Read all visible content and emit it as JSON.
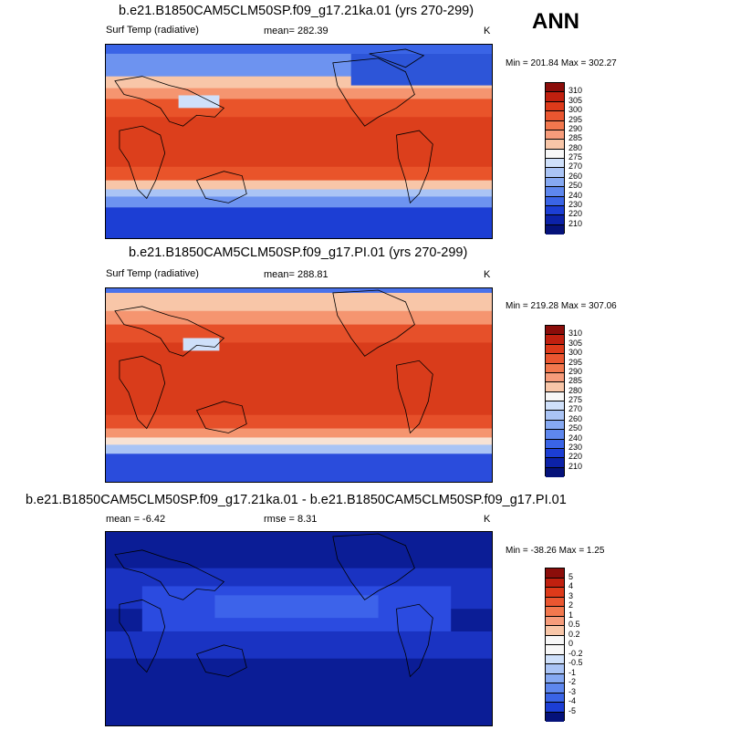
{
  "season": "ANN",
  "colors": {
    "temp_scale": [
      "#f7f7f7"
    ],
    "diff_scale": [
      "#f7f7f7"
    ]
  },
  "panels": [
    {
      "title": "b.e21.B1850CAM5CLM50SP.f09_g17.21ka.01 (yrs 270-299)",
      "left_label": "Surf Temp (radiative)",
      "center_label": "mean= 282.39",
      "unit": "K",
      "minmax": "Min = 201.84 Max = 302.27",
      "colorbar_labels": [
        "310",
        "305",
        "300",
        "295",
        "290",
        "285",
        "280",
        "275",
        "270",
        "260",
        "250",
        "240",
        "230",
        "220",
        "210"
      ]
    },
    {
      "title": "b.e21.B1850CAM5CLM50SP.f09_g17.PI.01 (yrs 270-299)",
      "left_label": "Surf Temp (radiative)",
      "center_label": "mean= 288.81",
      "unit": "K",
      "minmax": "Min = 219.28 Max = 307.06",
      "colorbar_labels": [
        "310",
        "305",
        "300",
        "295",
        "290",
        "285",
        "280",
        "275",
        "270",
        "260",
        "250",
        "240",
        "230",
        "220",
        "210"
      ]
    },
    {
      "title": "b.e21.B1850CAM5CLM50SP.f09_g17.21ka.01 - b.e21.B1850CAM5CLM50SP.f09_g17.PI.01",
      "left_label": "mean =  -6.42",
      "center_label": "rmse =   8.31",
      "unit": "K",
      "minmax": "Min = -38.26 Max =   1.25",
      "colorbar_labels": [
        "5",
        "4",
        "3",
        "2",
        "1",
        "0.5",
        "0.2",
        "0",
        "-0.2",
        "-0.5",
        "-1",
        "-2",
        "-3",
        "-4",
        "-5"
      ]
    }
  ]
}
